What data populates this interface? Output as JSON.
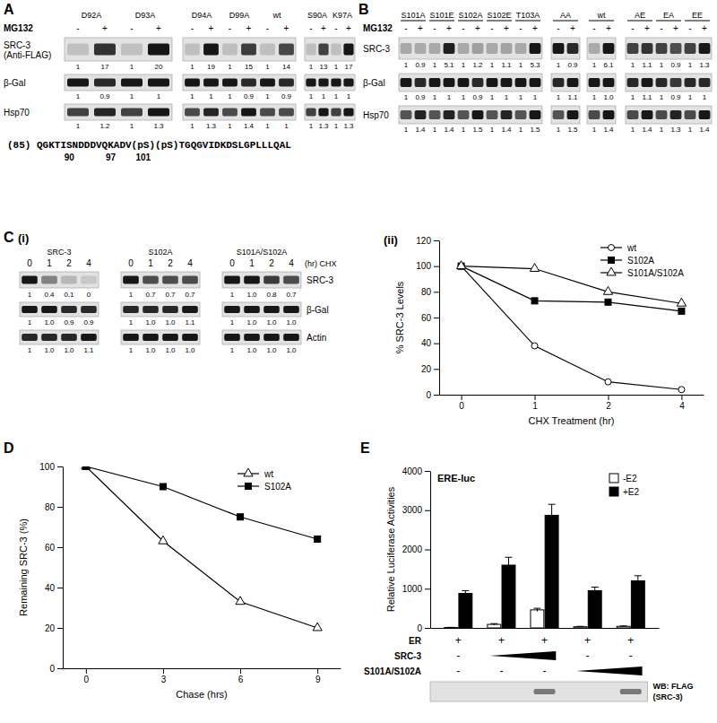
{
  "panel_labels": [
    "A",
    "B",
    "C",
    "(i)",
    "(ii)",
    "D",
    "E"
  ],
  "blot_a": {
    "treatment": "MG132",
    "lanes": [
      "-",
      "+"
    ],
    "row_labels": [
      [
        "SRC-3",
        "(Anti-FLAG)"
      ],
      [
        "β-Gal"
      ],
      [
        "Hsp70"
      ]
    ],
    "blocks": [
      {
        "groups": [
          "D92A",
          "D93A"
        ],
        "quant": [
          [
            "1",
            "17",
            "1",
            "20"
          ],
          [
            "1",
            "0.9",
            "1",
            "1"
          ],
          [
            "1",
            "1.2",
            "1",
            "1.3"
          ]
        ]
      },
      {
        "groups": [
          "D94A",
          "D99A",
          "wt"
        ],
        "quant": [
          [
            "1",
            "19",
            "1",
            "15",
            "1",
            "14"
          ],
          [
            "1",
            "1",
            "1",
            "0.9",
            "1",
            "0.9"
          ],
          [
            "1",
            "1.3",
            "1",
            "1.4",
            "1",
            "1"
          ]
        ]
      },
      {
        "groups": [
          "S90A",
          "K97A"
        ],
        "quant": [
          [
            "1",
            "13",
            "1",
            "17"
          ],
          [
            "1",
            "1",
            "1",
            "1"
          ],
          [
            "1",
            "1.3",
            "1",
            "1.3"
          ]
        ]
      }
    ],
    "sequence": "(85) QGKTISNDDDVQKADV(pS)(pS)TGQGVIDKDSLGPLLLQAL",
    "residue_labels": [
      90,
      97,
      101
    ]
  },
  "blot_b": {
    "treatment": "MG132",
    "lanes": [
      "-",
      "+"
    ],
    "row_labels": [
      [
        "SRC-3"
      ],
      [
        "β-Gal"
      ],
      [
        "Hsp70"
      ]
    ],
    "blocks": [
      {
        "groups": [
          "S101A",
          "S101E",
          "S102A",
          "S102E",
          "T103A"
        ],
        "quant": [
          [
            "1",
            "0.9",
            "1",
            "5.1",
            "1",
            "1.2",
            "1",
            "1.1",
            "1",
            "5.3"
          ],
          [
            "1",
            "0.9",
            "1",
            "1",
            "1",
            "0.9",
            "1",
            "1",
            "1",
            "1"
          ],
          [
            "1",
            "1.4",
            "1",
            "1.4",
            "1",
            "1.5",
            "1",
            "1.4",
            "1",
            "1.5"
          ]
        ]
      },
      {
        "groups": [
          "AA"
        ],
        "quant": [
          [
            "1",
            "0.9"
          ],
          [
            "1",
            "1.1"
          ],
          [
            "1",
            "1.5"
          ]
        ]
      },
      {
        "groups": [
          "wt"
        ],
        "quant": [
          [
            "1",
            "6.1"
          ],
          [
            "1",
            "1.0"
          ],
          [
            "1",
            "1.4"
          ]
        ]
      },
      {
        "groups": [
          "AE",
          "EA",
          "EE"
        ],
        "quant": [
          [
            "1",
            "1.1",
            "1",
            "0.9",
            "1",
            "1.3"
          ],
          [
            "1",
            "1.1",
            "1",
            "0.9",
            "1",
            "1"
          ],
          [
            "1",
            "1.4",
            "1",
            "1.3",
            "1",
            "1.4"
          ]
        ]
      }
    ]
  },
  "blot_c": {
    "lanes": [
      "0",
      "1",
      "2",
      "4"
    ],
    "lane_unit": "(hr) CHX",
    "row_labels": [
      [
        "SRC-3"
      ],
      [
        "β-Gal"
      ],
      [
        "Actin"
      ]
    ],
    "blocks": [
      {
        "groups": [
          "SRC-3"
        ],
        "quant": [
          [
            "1",
            "0.4",
            "0.1",
            "0"
          ],
          [
            "1",
            "1.0",
            "0.9",
            "0.9"
          ],
          [
            "1",
            "1.0",
            "1.0",
            "1.1"
          ]
        ]
      },
      {
        "groups": [
          "S102A"
        ],
        "quant": [
          [
            "1",
            "0.7",
            "0.7",
            "0.7"
          ],
          [
            "1",
            "1.0",
            "1.0",
            "1.1"
          ],
          [
            "1",
            "1.0",
            "1.0",
            "1.0"
          ]
        ]
      },
      {
        "groups": [
          "S101A/S102A"
        ],
        "quant": [
          [
            "1",
            "1.0",
            "0.8",
            "0.7"
          ],
          [
            "1",
            "1.0",
            "1.0",
            "1.0"
          ],
          [
            "1",
            "1.0",
            "1.0",
            "1.0"
          ]
        ]
      }
    ]
  },
  "chart_data": [
    {
      "type": "line",
      "categories": [
        "0",
        "1",
        "2",
        "4"
      ],
      "x_label": "CHX Treatment (hr)",
      "y_label": "% SRC-3 Levels",
      "ylim": [
        0,
        120
      ],
      "yticks": [
        0,
        20,
        40,
        60,
        80,
        100,
        120
      ],
      "legend": "top-right",
      "series": [
        {
          "name": "wt",
          "color": "#000000",
          "marker": "circle-open",
          "values": [
            100,
            38,
            10,
            4
          ]
        },
        {
          "name": "S102A",
          "color": "#000000",
          "marker": "square",
          "values": [
            100,
            73,
            72,
            65
          ]
        },
        {
          "name": "S101A/S102A",
          "color": "#000000",
          "marker": "triangle-open",
          "values": [
            100,
            98,
            80,
            71
          ]
        }
      ]
    },
    {
      "type": "line",
      "categories": [
        "0",
        "3",
        "6",
        "9"
      ],
      "x_label": "Chase (hrs)",
      "y_label": "Remaining SRC-3 (%)",
      "ylim": [
        0,
        100
      ],
      "yticks": [
        0,
        20,
        40,
        60,
        80,
        100
      ],
      "legend": "top-right",
      "series": [
        {
          "name": "wt",
          "color": "#000000",
          "marker": "triangle-open",
          "values": [
            100,
            63,
            33,
            20
          ]
        },
        {
          "name": "S102A",
          "color": "#000000",
          "marker": "square",
          "values": [
            100,
            90,
            75,
            64
          ]
        }
      ]
    },
    {
      "type": "bar",
      "title": "ERE-luc",
      "categories": [
        null,
        null,
        null,
        null,
        null
      ],
      "y_label": "Relative Luciferase Activities",
      "ylim": [
        0,
        4000
      ],
      "yticks": [
        0,
        1000,
        2000,
        3000,
        4000
      ],
      "legend": "top-right",
      "series": [
        {
          "name": "-E2",
          "color": "#ffffff",
          "values": [
            10,
            90,
            460,
            30,
            40
          ],
          "errors": [
            5,
            20,
            40,
            10,
            10
          ]
        },
        {
          "name": "+E2",
          "color": "#000000",
          "values": [
            880,
            1600,
            2870,
            950,
            1200
          ],
          "errors": [
            70,
            200,
            280,
            90,
            130
          ]
        }
      ]
    }
  ],
  "e_table": {
    "rows": [
      {
        "label": "ER",
        "cells": [
          "+",
          "+",
          "+",
          "+",
          "+"
        ]
      },
      {
        "label": "SRC-3",
        "cells": [
          "-",
          null,
          null,
          "-",
          "-"
        ]
      },
      {
        "label": "S101A/S102A",
        "cells": [
          "-",
          "-",
          "-",
          null,
          null
        ]
      }
    ],
    "wb_label": [
      "WB: FLAG",
      "(SRC-3)"
    ]
  }
}
